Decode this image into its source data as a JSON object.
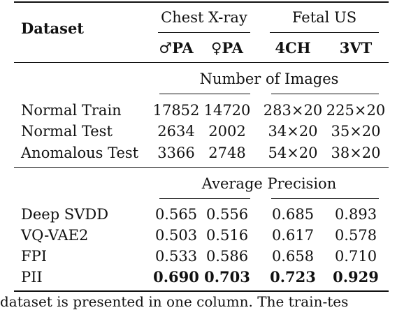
{
  "header": {
    "dataset_label": "Dataset",
    "group_chest": "Chest X-ray",
    "group_fetal": "Fetal US",
    "col_male_pa": "♂PA",
    "col_female_pa": "♀PA",
    "col_4ch": "4CH",
    "col_3vt": "3VT"
  },
  "sections": [
    {
      "title": "Number of Images",
      "rows": [
        {
          "label": "Normal Train",
          "values": [
            "17852",
            "14720",
            "283×20",
            "225×20"
          ]
        },
        {
          "label": "Normal Test",
          "values": [
            "2634",
            "2002",
            "34×20",
            "35×20"
          ]
        },
        {
          "label": "Anomalous Test",
          "values": [
            "3366",
            "2748",
            "54×20",
            "38×20"
          ]
        }
      ]
    },
    {
      "title": "Average Precision",
      "rows": [
        {
          "label": "Deep SVDD",
          "values": [
            "0.565",
            "0.556",
            "0.685",
            "0.893"
          ]
        },
        {
          "label": "VQ-VAE2",
          "values": [
            "0.503",
            "0.516",
            "0.617",
            "0.578"
          ]
        },
        {
          "label": "FPI",
          "values": [
            "0.533",
            "0.586",
            "0.658",
            "0.710"
          ]
        },
        {
          "label": "PII",
          "values": [
            "0.690",
            "0.703",
            "0.723",
            "0.929"
          ]
        }
      ]
    }
  ],
  "caption": "dataset is presented in one column. The train-tes"
}
